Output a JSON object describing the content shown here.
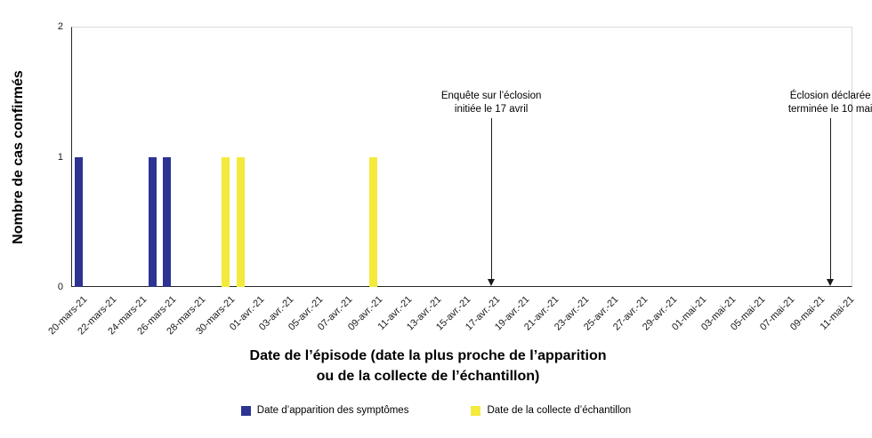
{
  "chart_data": {
    "type": "bar",
    "ylabel": "Nombre de cas confirmés",
    "xlabel": "Date de l’épisode (date la plus proche de l’apparition ou de la collecte de l’échantillon)",
    "xlabel_lines": [
      "Date de l’épisode (date la plus proche de l’apparition",
      "ou de la collecte de l’échantillon)"
    ],
    "ylim": [
      0,
      2
    ],
    "y_ticks": [
      "0",
      "1",
      "2"
    ],
    "grid": "top gridline only, horizontal",
    "legend_position": "bottom",
    "axis_start_date": "20-mars-21",
    "axis_end_date": "11-mai-21",
    "days_total": 53,
    "x_tick_day_step": 2,
    "x_tick_labels": [
      "20-mars-21",
      "22-mars-21",
      "24-mars-21",
      "26-mars-21",
      "28-mars-21",
      "30-mars-21",
      "01-avr.-21",
      "03-avr.-21",
      "05-avr.-21",
      "07-avr.-21",
      "09-avr.-21",
      "11-avr.-21",
      "13-avr.-21",
      "15-avr.-21",
      "17-avr.-21",
      "19-avr.-21",
      "21-avr.-21",
      "23-avr.-21",
      "25-avr.-21",
      "27-avr.-21",
      "29-avr.-21",
      "01-mai-21",
      "03-mai-21",
      "05-mai-21",
      "07-mai-21",
      "09-mai-21",
      "11-mai-21"
    ],
    "series": [
      {
        "name": "Date d’apparition des symptômes",
        "color": "#2C3391",
        "bars": [
          {
            "date": "20-mars-21",
            "day_index": 0,
            "value": 1
          },
          {
            "date": "25-mars-21",
            "day_index": 5,
            "value": 1
          },
          {
            "date": "26-mars-21",
            "day_index": 6,
            "value": 1
          }
        ]
      },
      {
        "name": "Date de la collecte d’échantillon",
        "color": "#F3EA3C",
        "bars": [
          {
            "date": "30-mars-21",
            "day_index": 10,
            "value": 1
          },
          {
            "date": "31-mars-21",
            "day_index": 11,
            "value": 1
          },
          {
            "date": "09-avr.-21",
            "day_index": 20,
            "value": 1
          }
        ]
      }
    ],
    "annotations": [
      {
        "lines": [
          "Enquête sur l’éclosion",
          "initiée le 17 avril"
        ],
        "date": "17-avr.-21",
        "day_index": 28
      },
      {
        "lines": [
          "Éclosion déclarée",
          "terminée le 10 mai"
        ],
        "date": "10-mai-21",
        "day_index": 51
      }
    ],
    "colors": {
      "symptom_series": "#2C3391",
      "sample_series": "#F3EA3C",
      "grid": "#D9D9D9",
      "axis": "#262626",
      "text": "#000000"
    }
  }
}
